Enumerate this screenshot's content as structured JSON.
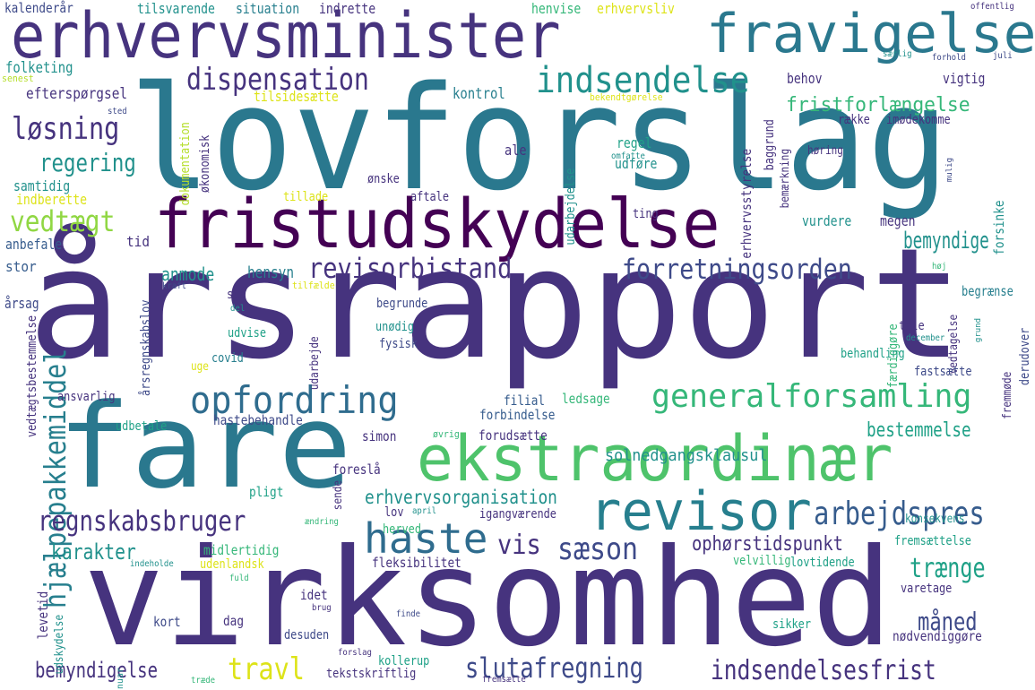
{
  "wordcloud": {
    "palette": {
      "dark_purple": "#440154",
      "indigo": "#46337e",
      "blue_purple": "#3e4a89",
      "slate_blue": "#365c8d",
      "steel_blue": "#2f6c8e",
      "teal_blue": "#277f8e",
      "teal": "#21918c",
      "sea_green": "#1fa187",
      "green": "#35b779",
      "light_green": "#4ec36b",
      "lime": "#90d743",
      "yellow_green": "#b5de2b",
      "yellow": "#dde318",
      "bright_yellow": "#fde725"
    },
    "words": [
      {
        "text": "lovforslag",
        "color": "#2a788e"
      },
      {
        "text": "årsrapport",
        "color": "#46337e"
      },
      {
        "text": "virksomhed",
        "color": "#46337e"
      },
      {
        "text": "fare",
        "color": "#2a788e"
      },
      {
        "text": "fristudskydelse",
        "color": "#440154"
      },
      {
        "text": "erhvervsminister",
        "color": "#46337e"
      },
      {
        "text": "fravigelse",
        "color": "#2a788e"
      },
      {
        "text": "ekstraordinær",
        "color": "#4ec36b"
      },
      {
        "text": "revisor",
        "color": "#277f8e"
      },
      {
        "text": "haste",
        "color": "#2f6c8e"
      },
      {
        "text": "opfordring",
        "color": "#2f6c8e"
      },
      {
        "text": "generalforsamling",
        "color": "#35b779"
      },
      {
        "text": "revisorbistand",
        "color": "#46337e"
      },
      {
        "text": "forretningsorden",
        "color": "#3e4a89"
      },
      {
        "text": "indsendelse",
        "color": "#21918c"
      },
      {
        "text": "dispensation",
        "color": "#46337e"
      },
      {
        "text": "fristforlængelse",
        "color": "#35b779"
      },
      {
        "text": "løsning",
        "color": "#46337e"
      },
      {
        "text": "regering",
        "color": "#21918c"
      },
      {
        "text": "vedtægt",
        "color": "#90d743"
      },
      {
        "text": "hjælpepakkemiddel",
        "color": "#277f8e"
      },
      {
        "text": "regnskabsbruger",
        "color": "#46337e"
      },
      {
        "text": "arbejdspres",
        "color": "#365c8d"
      },
      {
        "text": "sæson",
        "color": "#3e4a89"
      },
      {
        "text": "vis",
        "color": "#46337e"
      },
      {
        "text": "bemyndige",
        "color": "#21918c"
      },
      {
        "text": "slutafregning",
        "color": "#3e4a89"
      },
      {
        "text": "indsendelsesfrist",
        "color": "#46337e"
      },
      {
        "text": "bemyndigelse",
        "color": "#46337e"
      },
      {
        "text": "travl",
        "color": "#dde318"
      },
      {
        "text": "måned",
        "color": "#3e4a89"
      },
      {
        "text": "trænge",
        "color": "#1fa187"
      },
      {
        "text": "karakter",
        "color": "#21918c"
      },
      {
        "text": "ophørstidspunkt",
        "color": "#46337e"
      },
      {
        "text": "erhvervsorganisation",
        "color": "#21918c"
      },
      {
        "text": "solnedgangsklausul",
        "color": "#21918c"
      },
      {
        "text": "bestemmelse",
        "color": "#1fa187"
      },
      {
        "text": "anmode",
        "color": "#21918c"
      },
      {
        "text": "hensyn",
        "color": "#277f8e"
      },
      {
        "text": "tid",
        "color": "#46337e"
      },
      {
        "text": "anbefale",
        "color": "#365c8d"
      },
      {
        "text": "stor",
        "color": "#365c8d"
      },
      {
        "text": "årsag",
        "color": "#3e4a89"
      },
      {
        "text": "samtidig",
        "color": "#21918c"
      },
      {
        "text": "indberette",
        "color": "#dde318"
      },
      {
        "text": "efterspørgsel",
        "color": "#46337e"
      },
      {
        "text": "folketing",
        "color": "#21918c"
      },
      {
        "text": "kalenderår",
        "color": "#3e4a89"
      },
      {
        "text": "senest",
        "color": "#b5de2b"
      },
      {
        "text": "tilsvarende",
        "color": "#21918c"
      },
      {
        "text": "situation",
        "color": "#277f8e"
      },
      {
        "text": "indrette",
        "color": "#46337e"
      },
      {
        "text": "henvise",
        "color": "#35b779"
      },
      {
        "text": "erhvervsliv",
        "color": "#dde318"
      },
      {
        "text": "offentlig",
        "color": "#46337e"
      },
      {
        "text": "særlig",
        "color": "#21918c"
      },
      {
        "text": "forhold",
        "color": "#3e4a89"
      },
      {
        "text": "juli",
        "color": "#3e4a89"
      },
      {
        "text": "behov",
        "color": "#46337e"
      },
      {
        "text": "vigtig",
        "color": "#46337e"
      },
      {
        "text": "række",
        "color": "#46337e"
      },
      {
        "text": "imødekomme",
        "color": "#46337e"
      },
      {
        "text": "tilsidesætte",
        "color": "#dde318"
      },
      {
        "text": "kontrol",
        "color": "#277f8e"
      },
      {
        "text": "bekendtgørelse",
        "color": "#dde318"
      },
      {
        "text": "omfatte",
        "color": "#21918c"
      },
      {
        "text": "ale",
        "color": "#46337e"
      },
      {
        "text": "regel",
        "color": "#1fa187"
      },
      {
        "text": "udføre",
        "color": "#21918c"
      },
      {
        "text": "ønske",
        "color": "#46337e"
      },
      {
        "text": "aftale",
        "color": "#46337e"
      },
      {
        "text": "tillade",
        "color": "#dde318"
      },
      {
        "text": "ting",
        "color": "#46337e"
      },
      {
        "text": "vurdere",
        "color": "#21918c"
      },
      {
        "text": "megen",
        "color": "#46337e"
      },
      {
        "text": "høring",
        "color": "#46337e"
      },
      {
        "text": "mulig",
        "color": "#3e4a89"
      },
      {
        "text": "forsinke",
        "color": "#21918c"
      },
      {
        "text": "begrænse",
        "color": "#277f8e"
      },
      {
        "text": "høj",
        "color": "#35b779"
      },
      {
        "text": "sted",
        "color": "#3e4a89"
      },
      {
        "text": "økonomisk",
        "color": "#46337e"
      },
      {
        "text": "dokumentation",
        "color": "#b5de2b"
      },
      {
        "text": "udarbejdelse",
        "color": "#21918c"
      },
      {
        "text": "erhvervsstyrelse",
        "color": "#46337e"
      },
      {
        "text": "baggrund",
        "color": "#46337e"
      },
      {
        "text": "bemærkning",
        "color": "#46337e"
      },
      {
        "text": "kraft",
        "color": "#3e4a89"
      },
      {
        "text": "stå",
        "color": "#46337e"
      },
      {
        "text": "tilfælde",
        "color": "#dde318"
      },
      {
        "text": "del",
        "color": "#21918c"
      },
      {
        "text": "begrunde",
        "color": "#3e4a89"
      },
      {
        "text": "færdiggøre",
        "color": "#35b779"
      },
      {
        "text": "tale",
        "color": "#46337e"
      },
      {
        "text": "vedtagelse",
        "color": "#46337e"
      },
      {
        "text": "fremmøde",
        "color": "#46337e"
      },
      {
        "text": "derudover",
        "color": "#3e4a89"
      },
      {
        "text": "december",
        "color": "#21918c"
      },
      {
        "text": "grund",
        "color": "#21918c"
      },
      {
        "text": "årsregnskabslov",
        "color": "#3e4a89"
      },
      {
        "text": "udvise",
        "color": "#1fa187"
      },
      {
        "text": "covid",
        "color": "#277f8e"
      },
      {
        "text": "uge",
        "color": "#dde318"
      },
      {
        "text": "udarbejde",
        "color": "#46337e"
      },
      {
        "text": "unødig",
        "color": "#21918c"
      },
      {
        "text": "fysisk",
        "color": "#3e4a89"
      },
      {
        "text": "behandling",
        "color": "#1fa187"
      },
      {
        "text": "fastsætte",
        "color": "#3e4a89"
      },
      {
        "text": "ansvarlig",
        "color": "#46337e"
      },
      {
        "text": "vedtægtsbestemmelse",
        "color": "#46337e"
      },
      {
        "text": "hastebehandle",
        "color": "#3e4a89"
      },
      {
        "text": "filial",
        "color": "#365c8d"
      },
      {
        "text": "ledsage",
        "color": "#35b779"
      },
      {
        "text": "forbindelse",
        "color": "#365c8d"
      },
      {
        "text": "udbetale",
        "color": "#1fa187"
      },
      {
        "text": "simon",
        "color": "#46337e"
      },
      {
        "text": "øvrig",
        "color": "#35b779"
      },
      {
        "text": "forudsætte",
        "color": "#46337e"
      },
      {
        "text": "foreslå",
        "color": "#46337e"
      },
      {
        "text": "sende",
        "color": "#46337e"
      },
      {
        "text": "pligt",
        "color": "#1fa187"
      },
      {
        "text": "lov",
        "color": "#46337e"
      },
      {
        "text": "april",
        "color": "#21918c"
      },
      {
        "text": "igangværende",
        "color": "#46337e"
      },
      {
        "text": "konsekvens",
        "color": "#21918c"
      },
      {
        "text": "ændring",
        "color": "#35b779"
      },
      {
        "text": "herved",
        "color": "#35b779"
      },
      {
        "text": "midlertidig",
        "color": "#35b779"
      },
      {
        "text": "udenlandsk",
        "color": "#dde318"
      },
      {
        "text": "fleksibilitet",
        "color": "#46337e"
      },
      {
        "text": "velvillig",
        "color": "#35b779"
      },
      {
        "text": "lovtidende",
        "color": "#1fa187"
      },
      {
        "text": "fremsættelse",
        "color": "#1fa187"
      },
      {
        "text": "indeholde",
        "color": "#21918c"
      },
      {
        "text": "fuld",
        "color": "#35b779"
      },
      {
        "text": "idet",
        "color": "#46337e"
      },
      {
        "text": "levetid",
        "color": "#46337e"
      },
      {
        "text": "udskydelse",
        "color": "#21918c"
      },
      {
        "text": "kort",
        "color": "#3e4a89"
      },
      {
        "text": "dag",
        "color": "#46337e"
      },
      {
        "text": "brug",
        "color": "#46337e"
      },
      {
        "text": "desuden",
        "color": "#3e4a89"
      },
      {
        "text": "finde",
        "color": "#3e4a89"
      },
      {
        "text": "sikker",
        "color": "#1fa187"
      },
      {
        "text": "varetage",
        "color": "#46337e"
      },
      {
        "text": "nødvendiggøre",
        "color": "#46337e"
      },
      {
        "text": "januar",
        "color": "#21918c"
      },
      {
        "text": "forslag",
        "color": "#46337e"
      },
      {
        "text": "kollerup",
        "color": "#1fa187"
      },
      {
        "text": "tekstskriftlig",
        "color": "#46337e"
      },
      {
        "text": "fremsætte",
        "color": "#46337e"
      },
      {
        "text": "træde",
        "color": "#35b779"
      }
    ]
  }
}
